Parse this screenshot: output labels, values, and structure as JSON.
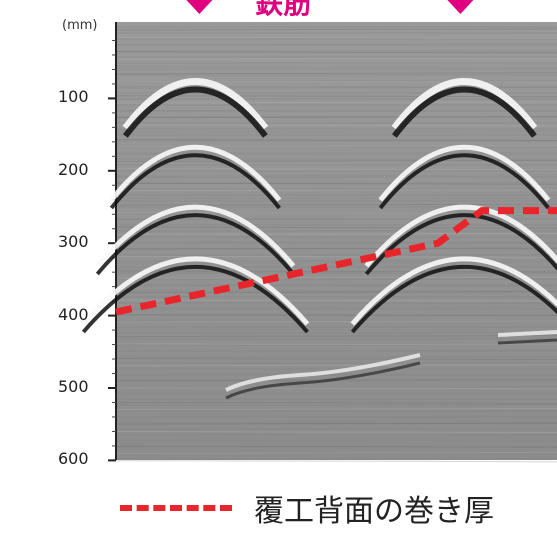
{
  "header": {
    "title_fragment": "鉄筋"
  },
  "chart_data": {
    "type": "line",
    "title": "",
    "ylabel": "(mm)",
    "ylim": [
      0,
      600
    ],
    "y_reversed": true,
    "yticks": [
      "100",
      "200",
      "300",
      "400",
      "500",
      "600"
    ],
    "marker_color": "#e0007f",
    "line_color": "#e8252a",
    "series": [
      {
        "name": "覆工背面の巻き厚",
        "x": [
          0,
          0.73,
          0.83,
          1.0
        ],
        "y": [
          395,
          300,
          255,
          255
        ]
      }
    ],
    "rebar_positions_relative": [
      0.18,
      0.79
    ],
    "background": "ground-penetrating radar scan (grayscale)"
  },
  "legend": {
    "label": "覆工背面の巻き厚"
  }
}
